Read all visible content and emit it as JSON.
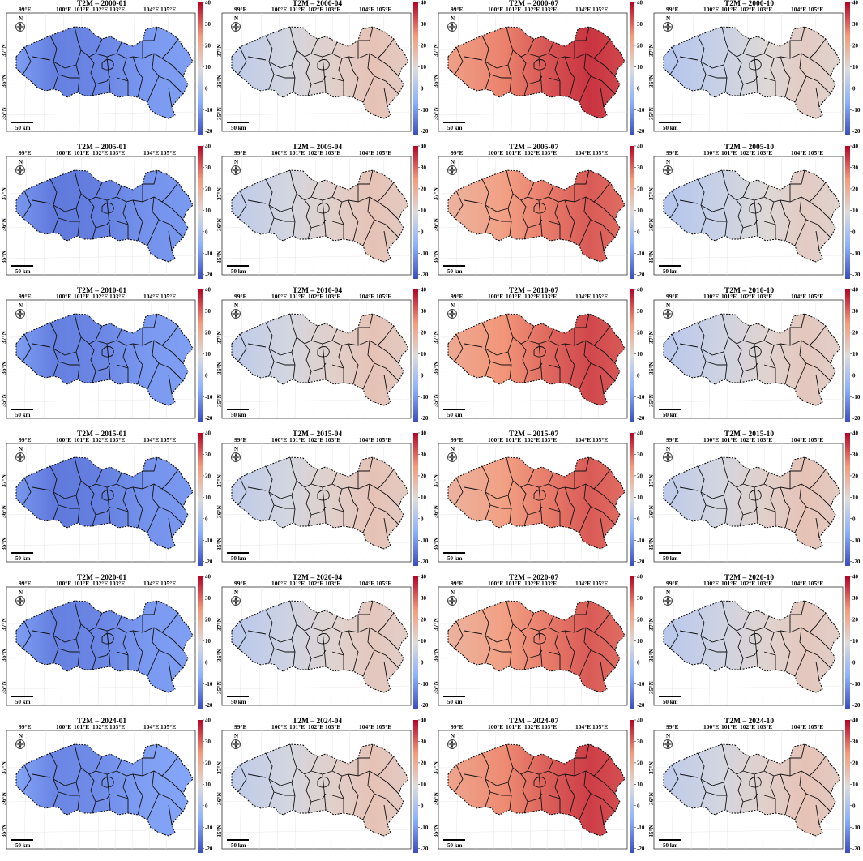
{
  "figure": {
    "variable": "T2M",
    "years": [
      "2000",
      "2005",
      "2010",
      "2015",
      "2020",
      "2024"
    ],
    "months": [
      "01",
      "04",
      "07",
      "10"
    ],
    "panel_titles": [
      [
        "T2M – 2000-01",
        "T2M – 2000-04",
        "T2M – 2000-07",
        "T2M – 2000-10"
      ],
      [
        "T2M – 2005-01",
        "T2M – 2005-04",
        "T2M – 2005-07",
        "T2M – 2005-10"
      ],
      [
        "T2M – 2010-01",
        "T2M – 2010-04",
        "T2M – 2010-07",
        "T2M – 2010-10"
      ],
      [
        "T2M – 2015-01",
        "T2M – 2015-04",
        "T2M – 2015-07",
        "T2M – 2015-10"
      ],
      [
        "T2M – 2020-01",
        "T2M – 2020-04",
        "T2M – 2020-07",
        "T2M – 2020-10"
      ],
      [
        "T2M – 2024-01",
        "T2M – 2024-04",
        "T2M – 2024-07",
        "T2M – 2024-10"
      ]
    ],
    "longitude_labels": [
      "99°E",
      "100°E",
      "101°E",
      "102°E",
      "103°E",
      "104°E",
      "105°E"
    ],
    "latitude_labels": [
      "37°N",
      "36°N",
      "35°N"
    ],
    "scale_bar_label": "50 km",
    "compass_label": "N",
    "colorbar": {
      "ticks": [
        "40",
        "30",
        "20",
        "10",
        "0",
        "-10",
        "-20"
      ],
      "range": [
        -22,
        40
      ],
      "colors": [
        "#b40426",
        "#f49a7b",
        "#dddcdc",
        "#8db0fe",
        "#3b4cc0"
      ]
    },
    "panel_mean_temperature": [
      [
        -12,
        8,
        28,
        6
      ],
      [
        -13,
        8,
        24,
        6
      ],
      [
        -12,
        8,
        26,
        7
      ],
      [
        -13,
        8,
        24,
        8
      ],
      [
        -12,
        7,
        24,
        7
      ],
      [
        -11,
        8,
        27,
        8
      ]
    ]
  }
}
